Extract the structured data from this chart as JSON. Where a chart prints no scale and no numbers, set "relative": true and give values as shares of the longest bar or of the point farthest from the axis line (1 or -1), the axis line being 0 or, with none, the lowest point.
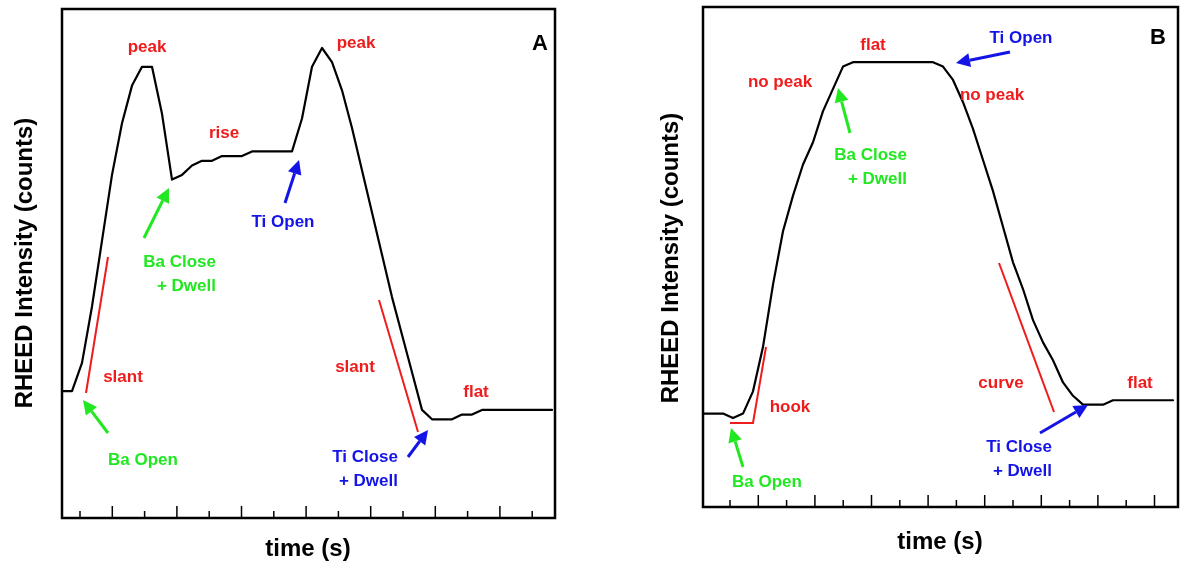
{
  "chart_data": [
    {
      "type": "line",
      "relative": true,
      "title": "A",
      "xlabel": "time (s)",
      "ylabel": "RHEED Intensity (counts)",
      "categories": [
        null,
        null,
        null,
        null,
        null,
        null,
        null,
        null,
        null,
        null,
        null,
        null,
        null,
        null,
        null,
        null,
        null,
        null,
        null,
        null,
        null,
        null,
        null,
        null,
        null,
        null,
        null,
        null,
        null,
        null,
        null,
        null,
        null,
        null,
        null,
        null,
        null,
        null,
        null,
        null,
        null,
        null,
        null,
        null,
        null,
        null,
        null,
        null,
        null,
        null
      ],
      "series": [
        {
          "color": "#000000",
          "values": [
            0.27,
            0.27,
            0.33,
            0.45,
            0.59,
            0.73,
            0.84,
            0.92,
            0.96,
            0.96,
            0.86,
            0.72,
            0.73,
            0.75,
            0.76,
            0.76,
            0.77,
            0.77,
            0.77,
            0.78,
            0.78,
            0.78,
            0.78,
            0.78,
            0.85,
            0.96,
            1,
            0.97,
            0.91,
            0.83,
            0.74,
            0.65,
            0.56,
            0.47,
            0.39,
            0.31,
            0.23,
            0.21,
            0.21,
            0.21,
            0.22,
            0.22,
            0.23,
            0.23,
            0.23,
            0.23,
            0.23,
            0.23,
            0.23,
            0.23
          ]
        }
      ],
      "annotations": [
        "peak",
        "peak",
        "rise",
        "slant",
        "slant",
        "flat",
        "Ba Open",
        "Ba Close\n+ Dwell",
        "Ti Open",
        "Ti Close\n+ Dwell"
      ]
    },
    {
      "type": "line",
      "relative": true,
      "title": "B",
      "xlabel": "time (s)",
      "ylabel": "RHEED Intensity (counts)",
      "categories": [
        null,
        null,
        null,
        null,
        null,
        null,
        null,
        null,
        null,
        null,
        null,
        null,
        null,
        null,
        null,
        null,
        null,
        null,
        null,
        null,
        null,
        null,
        null,
        null,
        null,
        null,
        null,
        null,
        null,
        null,
        null,
        null,
        null,
        null,
        null,
        null,
        null,
        null,
        null,
        null,
        null,
        null,
        null,
        null,
        null,
        null,
        null,
        null
      ],
      "series": [
        {
          "color": "#000000",
          "values": [
            0.21,
            0.21,
            0.21,
            0.2,
            0.21,
            0.26,
            0.36,
            0.5,
            0.62,
            0.7,
            0.77,
            0.82,
            0.89,
            0.94,
            0.99,
            1,
            1,
            1,
            1,
            1,
            1,
            1,
            1,
            1,
            0.99,
            0.96,
            0.91,
            0.85,
            0.78,
            0.71,
            0.63,
            0.55,
            0.49,
            0.42,
            0.37,
            0.33,
            0.28,
            0.25,
            0.23,
            0.23,
            0.23,
            0.24,
            0.24,
            0.24,
            0.24,
            0.24,
            0.24,
            0.24
          ]
        }
      ],
      "annotations": [
        "flat",
        "no peak",
        "no peak",
        "hook",
        "curve",
        "flat",
        "Ba Open",
        "Ba Close\n+ Dwell",
        "Ti Open",
        "Ti Close\n+ Dwell"
      ]
    }
  ]
}
